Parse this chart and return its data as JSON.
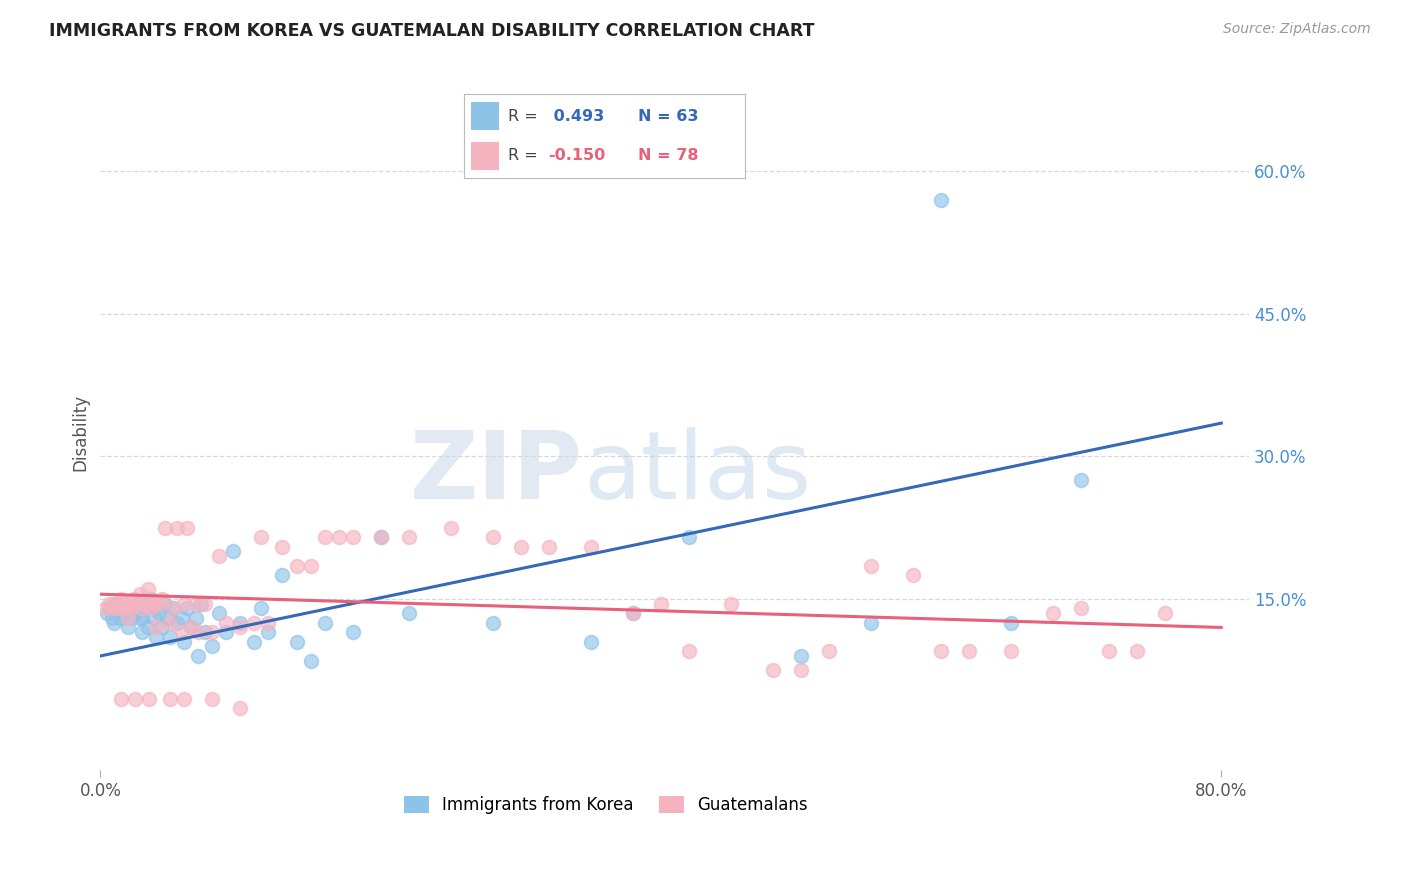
{
  "title": "IMMIGRANTS FROM KOREA VS GUATEMALAN DISABILITY CORRELATION CHART",
  "source": "Source: ZipAtlas.com",
  "ylabel": "Disability",
  "xlim": [
    0.0,
    0.82
  ],
  "ylim": [
    -0.03,
    0.68
  ],
  "korea_R": 0.493,
  "korea_N": 63,
  "guatemala_R": -0.15,
  "guatemala_N": 78,
  "korea_color": "#8ec3e8",
  "korea_line_color": "#3568b8",
  "guatemala_color": "#f5b3c0",
  "guatemala_line_color": "#e8607a",
  "korea_line_x0": 0.0,
  "korea_line_y0": 0.09,
  "korea_line_x1": 0.8,
  "korea_line_y1": 0.335,
  "guatemala_line_x0": 0.0,
  "guatemala_line_y0": 0.155,
  "guatemala_line_x1": 0.8,
  "guatemala_line_y1": 0.12,
  "korea_scatter_x": [
    0.005,
    0.007,
    0.008,
    0.01,
    0.01,
    0.012,
    0.014,
    0.015,
    0.016,
    0.018,
    0.02,
    0.022,
    0.024,
    0.025,
    0.026,
    0.028,
    0.03,
    0.03,
    0.032,
    0.034,
    0.036,
    0.038,
    0.04,
    0.04,
    0.042,
    0.044,
    0.046,
    0.048,
    0.05,
    0.052,
    0.055,
    0.058,
    0.06,
    0.062,
    0.065,
    0.068,
    0.07,
    0.072,
    0.075,
    0.08,
    0.085,
    0.09,
    0.095,
    0.1,
    0.11,
    0.115,
    0.12,
    0.13,
    0.14,
    0.15,
    0.16,
    0.18,
    0.2,
    0.22,
    0.28,
    0.35,
    0.38,
    0.42,
    0.5,
    0.6,
    0.65,
    0.7,
    0.55
  ],
  "korea_scatter_y": [
    0.135,
    0.14,
    0.13,
    0.125,
    0.145,
    0.14,
    0.13,
    0.145,
    0.135,
    0.14,
    0.12,
    0.13,
    0.14,
    0.135,
    0.145,
    0.13,
    0.115,
    0.13,
    0.14,
    0.12,
    0.15,
    0.13,
    0.11,
    0.14,
    0.135,
    0.12,
    0.145,
    0.13,
    0.11,
    0.14,
    0.125,
    0.13,
    0.105,
    0.14,
    0.12,
    0.13,
    0.09,
    0.145,
    0.115,
    0.1,
    0.135,
    0.115,
    0.2,
    0.125,
    0.105,
    0.14,
    0.115,
    0.175,
    0.105,
    0.085,
    0.125,
    0.115,
    0.215,
    0.135,
    0.125,
    0.105,
    0.135,
    0.215,
    0.09,
    0.57,
    0.125,
    0.275,
    0.125
  ],
  "guatemala_scatter_x": [
    0.004,
    0.006,
    0.008,
    0.01,
    0.012,
    0.014,
    0.015,
    0.016,
    0.018,
    0.02,
    0.02,
    0.022,
    0.024,
    0.025,
    0.028,
    0.03,
    0.032,
    0.034,
    0.036,
    0.038,
    0.04,
    0.042,
    0.044,
    0.046,
    0.05,
    0.052,
    0.055,
    0.058,
    0.06,
    0.062,
    0.065,
    0.068,
    0.07,
    0.075,
    0.08,
    0.085,
    0.09,
    0.1,
    0.11,
    0.115,
    0.12,
    0.13,
    0.14,
    0.15,
    0.16,
    0.17,
    0.18,
    0.2,
    0.22,
    0.25,
    0.28,
    0.3,
    0.32,
    0.35,
    0.38,
    0.4,
    0.42,
    0.45,
    0.48,
    0.5,
    0.52,
    0.55,
    0.58,
    0.6,
    0.62,
    0.65,
    0.68,
    0.7,
    0.72,
    0.74,
    0.76,
    0.1,
    0.08,
    0.06,
    0.05,
    0.035,
    0.025,
    0.015
  ],
  "guatemala_scatter_y": [
    0.14,
    0.145,
    0.14,
    0.145,
    0.14,
    0.145,
    0.15,
    0.14,
    0.145,
    0.13,
    0.145,
    0.14,
    0.15,
    0.145,
    0.155,
    0.14,
    0.145,
    0.16,
    0.14,
    0.145,
    0.12,
    0.145,
    0.15,
    0.225,
    0.125,
    0.14,
    0.225,
    0.115,
    0.145,
    0.225,
    0.12,
    0.145,
    0.115,
    0.145,
    0.115,
    0.195,
    0.125,
    0.12,
    0.125,
    0.215,
    0.125,
    0.205,
    0.185,
    0.185,
    0.215,
    0.215,
    0.215,
    0.215,
    0.215,
    0.225,
    0.215,
    0.205,
    0.205,
    0.205,
    0.135,
    0.145,
    0.095,
    0.145,
    0.075,
    0.075,
    0.095,
    0.185,
    0.175,
    0.095,
    0.095,
    0.095,
    0.135,
    0.14,
    0.095,
    0.095,
    0.135,
    0.035,
    0.045,
    0.045,
    0.045,
    0.045,
    0.045,
    0.045
  ],
  "ytick_vals": [
    0.15,
    0.3,
    0.45,
    0.6
  ],
  "ytick_labels": [
    "15.0%",
    "30.0%",
    "45.0%",
    "60.0%"
  ],
  "xtick_vals": [
    0.0,
    0.8
  ],
  "xtick_labels": [
    "0.0%",
    "80.0%"
  ],
  "watermark_zip": "ZIP",
  "watermark_atlas": "atlas",
  "background_color": "#ffffff",
  "grid_color": "#d8d8d8"
}
